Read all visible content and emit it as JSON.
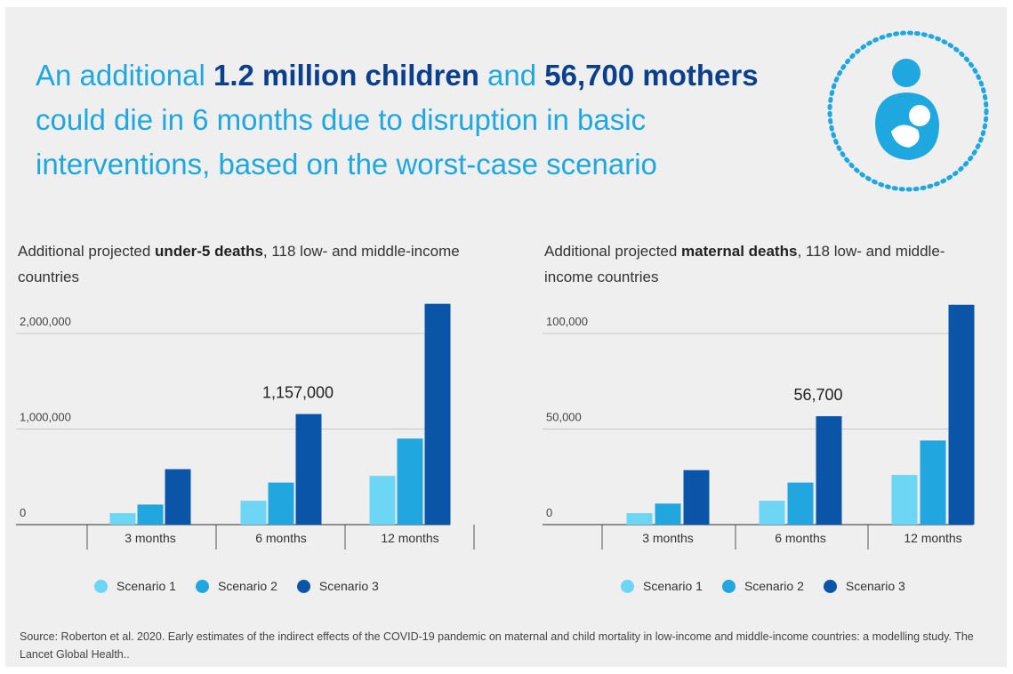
{
  "headline": {
    "part1": "An additional ",
    "bold1": "1.2 million children",
    "part2": " and ",
    "bold2": "56,700 mothers",
    "part3": " could die in 6 months due to disruption in basic interventions, based on the worst-case scenario"
  },
  "icon": "mother-breastfeeding-icon",
  "colors": {
    "scenario1": "#6dd6f5",
    "scenario2": "#22a6df",
    "scenario3": "#0b55a8",
    "headline_light": "#1fa8e0",
    "headline_dark": "#0a3f8c",
    "background": "#efefef"
  },
  "chart_data": [
    {
      "type": "bar",
      "title_prefix": "Additional projected ",
      "title_bold": "under-5 deaths",
      "title_suffix": ", 118 low- and middle-income countries",
      "categories": [
        "3 months",
        "6 months",
        "12 months"
      ],
      "series": [
        {
          "name": "Scenario 1",
          "values": [
            120000,
            250000,
            510000
          ]
        },
        {
          "name": "Scenario 2",
          "values": [
            210000,
            440000,
            900000
          ]
        },
        {
          "name": "Scenario 3",
          "values": [
            580000,
            1157000,
            2310000
          ]
        }
      ],
      "annotation": {
        "text": "1,157,000",
        "category_index": 1,
        "series_index": 2
      },
      "yticks": [
        0,
        1000000,
        2000000
      ],
      "ytick_labels": [
        "0",
        "1,000,000",
        "2,000,000"
      ],
      "ylim": [
        0,
        2000000
      ],
      "grid": true,
      "legend": "bottom"
    },
    {
      "type": "bar",
      "title_prefix": "Additional projected ",
      "title_bold": "maternal deaths",
      "title_suffix": ", 118 low- and middle-income countries",
      "categories": [
        "3 months",
        "6 months",
        "12 months"
      ],
      "series": [
        {
          "name": "Scenario 1",
          "values": [
            6000,
            12500,
            26000
          ]
        },
        {
          "name": "Scenario 2",
          "values": [
            11000,
            22000,
            44000
          ]
        },
        {
          "name": "Scenario 3",
          "values": [
            28500,
            56700,
            115000
          ]
        }
      ],
      "annotation": {
        "text": "56,700",
        "category_index": 1,
        "series_index": 2
      },
      "yticks": [
        0,
        50000,
        100000
      ],
      "ytick_labels": [
        "0",
        "50,000",
        "100,000"
      ],
      "ylim": [
        0,
        100000
      ],
      "grid": true,
      "legend": "bottom"
    }
  ],
  "legend": [
    "Scenario 1",
    "Scenario 2",
    "Scenario 3"
  ],
  "source": "Source: Roberton et al.  2020. Early estimates of the indirect effects of the COVID-19 pandemic on maternal and child mortality in low-income and middle-income countries: a modelling study. The Lancet Global Health.."
}
